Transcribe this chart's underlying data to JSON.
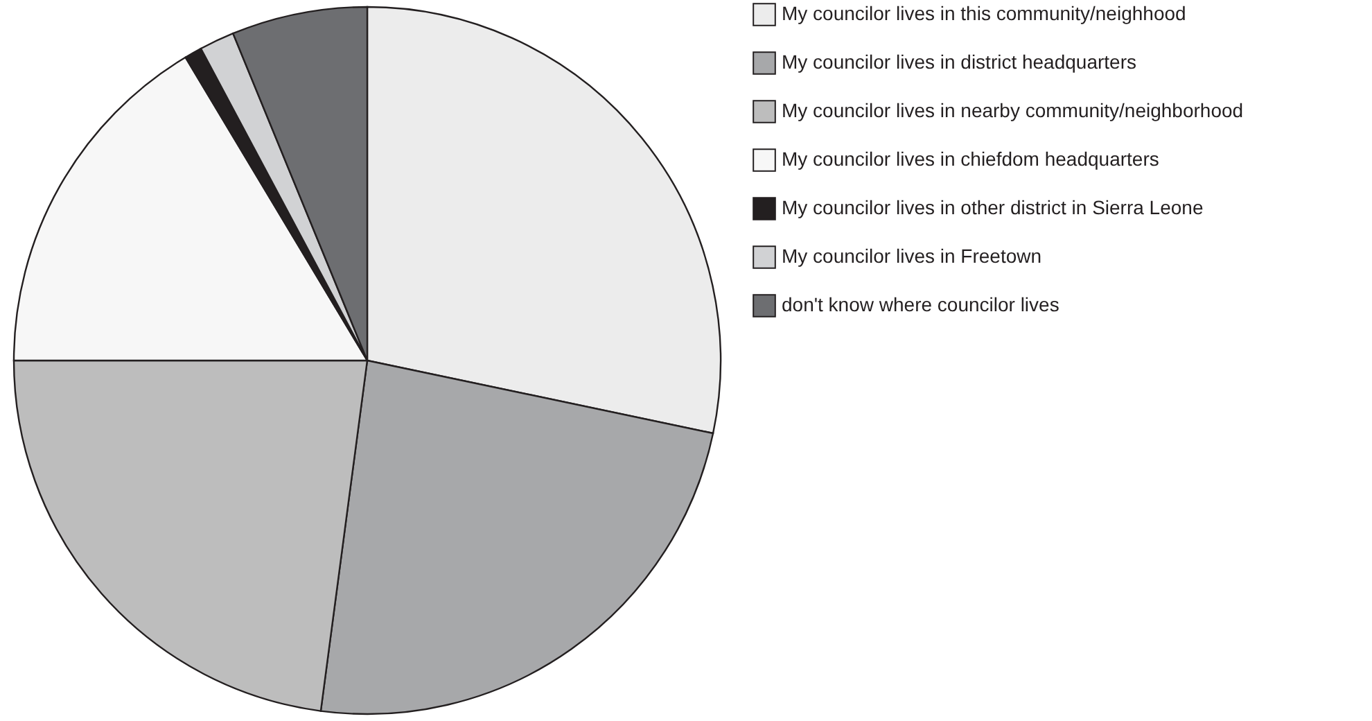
{
  "chart_data": {
    "type": "pie",
    "categories": [
      "My councilor lives in this community/neighhood",
      "My councilor lives in district headquarters",
      "My councilor lives in nearby community/neighborhood",
      "My councilor lives in chiefdom headquarters",
      "My councilor lives in other district in Sierra Leone",
      "My councilor lives in Freetown",
      "don't know where councilor lives"
    ],
    "values": [
      28.3,
      23.8,
      22.9,
      16.4,
      0.8,
      1.6,
      6.2
    ],
    "colors": [
      "#ececec",
      "#a7a8aa",
      "#bdbdbd",
      "#f7f7f7",
      "#231f20",
      "#d1d2d4",
      "#6d6e71"
    ],
    "legend": "right"
  }
}
